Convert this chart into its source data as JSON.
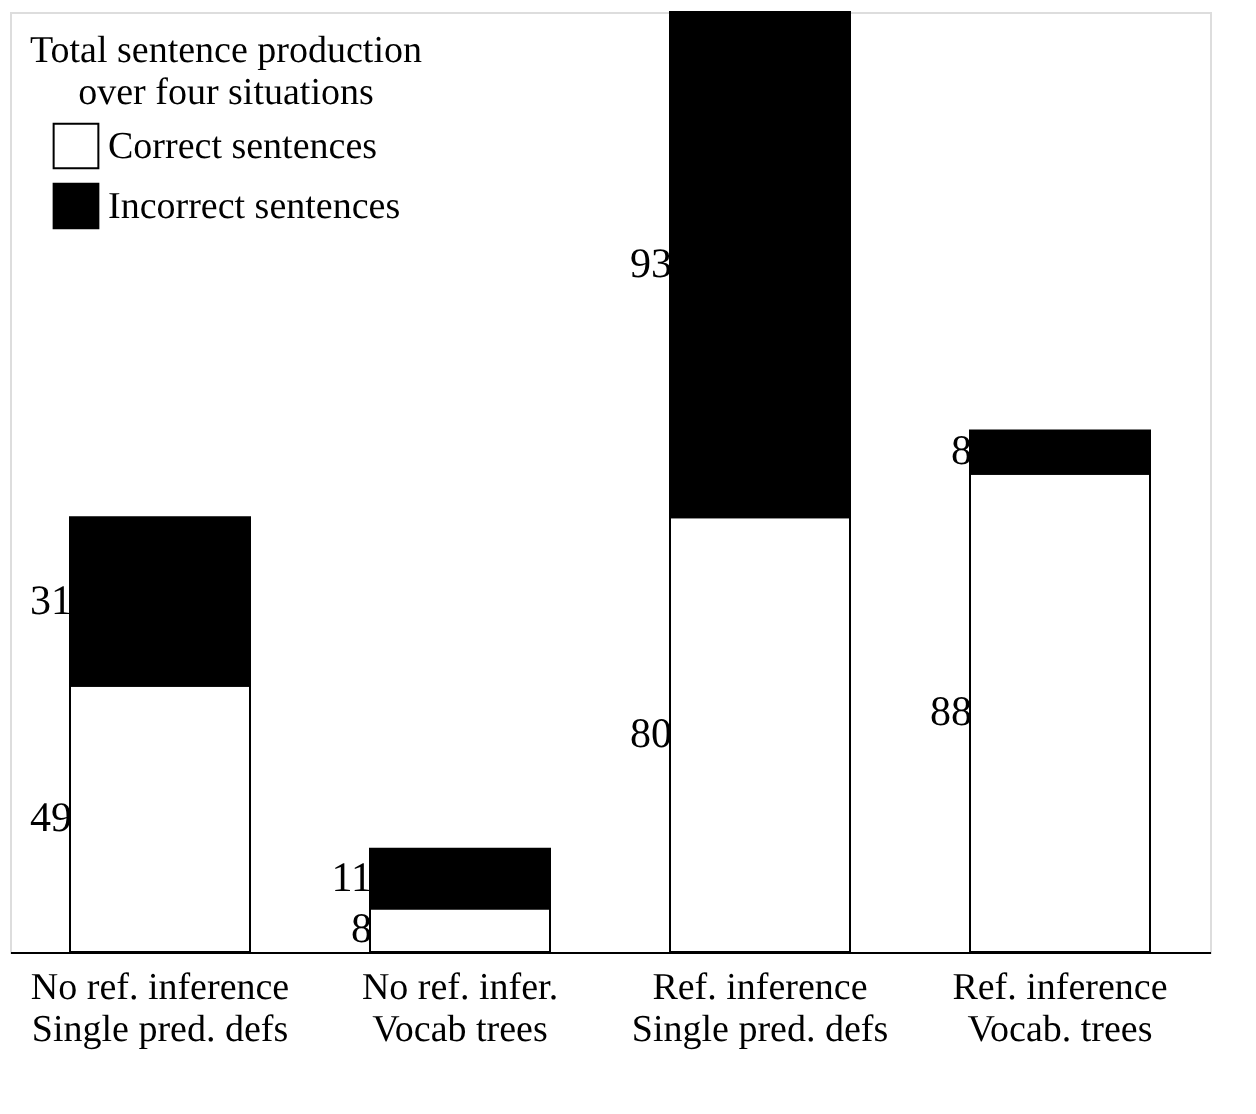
{
  "chart_data": {
    "type": "bar",
    "stacked": true,
    "data_labels": true,
    "legend": "top left",
    "legend_title": "Total sentence production\nover four situations",
    "categories": [
      "No ref. inference\nSingle pred. defs",
      "No ref. infer.\nVocab trees",
      "Ref. inference\nSingle pred. defs",
      "Ref. inference\nVocab. trees"
    ],
    "series": [
      {
        "name": "Correct sentences",
        "color": "#ffffff",
        "values": [
          49,
          8,
          80,
          88
        ]
      },
      {
        "name": "Incorrect sentences",
        "color": "#000000",
        "values": [
          31,
          11,
          93,
          8
        ]
      }
    ]
  }
}
